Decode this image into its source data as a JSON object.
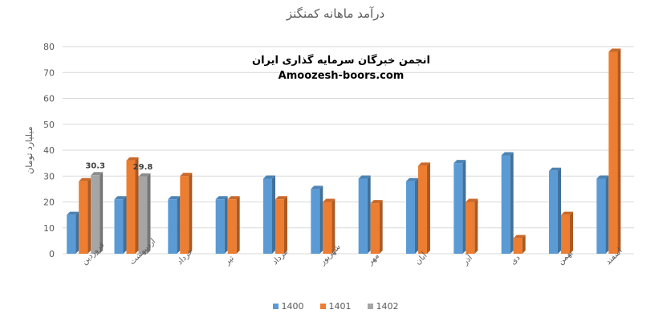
{
  "colors": {
    "s1400": "#5B9BD5",
    "s1401": "#ED7D31",
    "s1402": "#A5A5A5",
    "grid": "#D9D9D9",
    "axis_text": "#595959"
  },
  "watermark": {
    "line1": "انجمن خبرگان سرمایه گذاری ایران",
    "line2": "Amoozesh-boors.com"
  },
  "chart_data": {
    "type": "bar",
    "title": "درآمد ماهانه کمنگنز",
    "ylabel": "میلیارد تومان",
    "xlabel": "",
    "ylim": [
      0,
      80
    ],
    "yticks": [
      0,
      10,
      20,
      30,
      40,
      50,
      60,
      70,
      80
    ],
    "grid": true,
    "legend_position": "bottom",
    "categories": [
      "فروردین",
      "اردیبهشت",
      "خرداد",
      "تیر",
      "مرداد",
      "شهریور",
      "مهر",
      "آبان",
      "آذر",
      "دی",
      "بهمن",
      "اسفند"
    ],
    "series": [
      {
        "name": "1400",
        "values": [
          15,
          21,
          21,
          21,
          29,
          25,
          29,
          28,
          35,
          38,
          32,
          29
        ]
      },
      {
        "name": "1401",
        "values": [
          28,
          36,
          30,
          21,
          21,
          20,
          19.5,
          34,
          20,
          6,
          15,
          78
        ]
      },
      {
        "name": "1402",
        "values": [
          30.3,
          29.8,
          null,
          null,
          null,
          null,
          null,
          null,
          null,
          null,
          null,
          null
        ]
      }
    ],
    "data_labels": [
      {
        "series": "1402",
        "category": "فروردین",
        "text": "30.3"
      },
      {
        "series": "1402",
        "category": "اردیبهشت",
        "text": "29.8"
      }
    ]
  }
}
